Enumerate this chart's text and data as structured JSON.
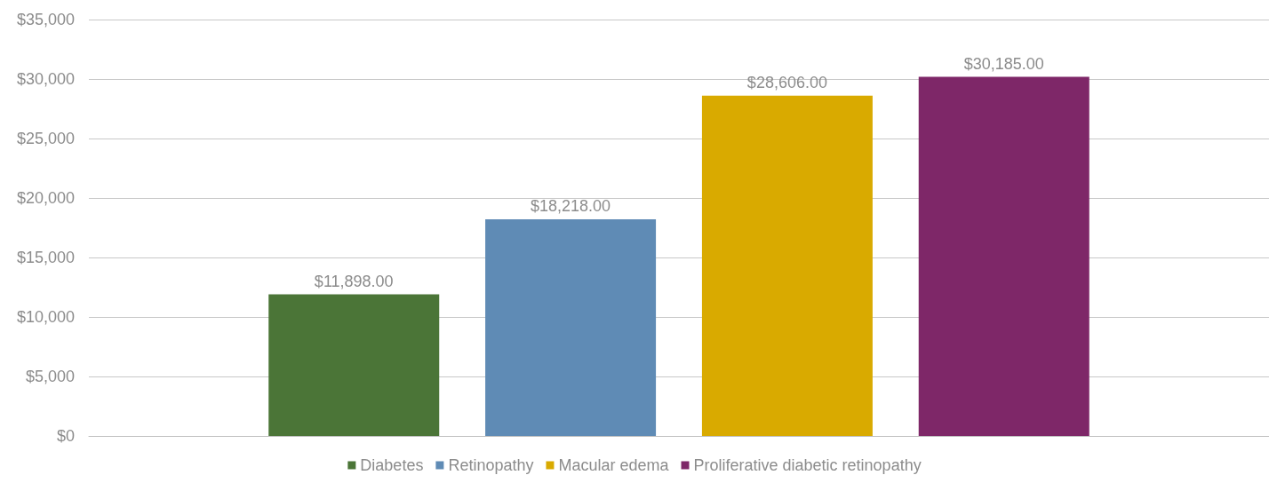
{
  "chart_data": {
    "type": "bar",
    "categories": [
      null
    ],
    "series": [
      {
        "name": "Diabetes",
        "color": "#4b7537",
        "values": [
          11898
        ],
        "value_labels": [
          "$11,898.00"
        ]
      },
      {
        "name": "Retinopathy",
        "color": "#5f8bb5",
        "values": [
          18218
        ],
        "value_labels": [
          "$18,218.00"
        ]
      },
      {
        "name": "Macular edema",
        "color": "#d9aa00",
        "values": [
          28606
        ],
        "value_labels": [
          "$28,606.00"
        ]
      },
      {
        "name": "Proliferative diabetic retinopathy",
        "color": "#7e2768",
        "values": [
          30185
        ],
        "value_labels": [
          "$30,185.00"
        ]
      }
    ],
    "ylim": [
      0,
      35000
    ],
    "yticks": [
      {
        "value": 0,
        "label": "$0"
      },
      {
        "value": 5000,
        "label": "$5,000"
      },
      {
        "value": 10000,
        "label": "$10,000"
      },
      {
        "value": 15000,
        "label": "$15,000"
      },
      {
        "value": 20000,
        "label": "$20,000"
      },
      {
        "value": 25000,
        "label": "$25,000"
      },
      {
        "value": 30000,
        "label": "$30,000"
      },
      {
        "value": 35000,
        "label": "$35,000"
      }
    ],
    "grid": "y",
    "legend": "bottom"
  }
}
